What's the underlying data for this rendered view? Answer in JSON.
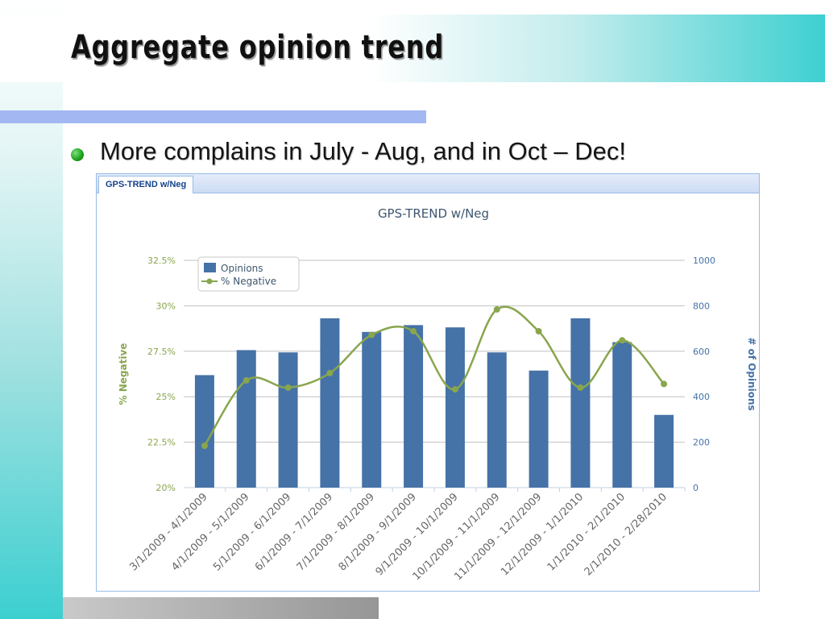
{
  "slide": {
    "title": "Aggregate opinion trend",
    "bullet": "More complains in July - Aug, and in Oct – Dec!"
  },
  "panel": {
    "tab_label": "GPS-TREND w/Neg"
  },
  "colors": {
    "bar": "#4572a7",
    "line": "#89a54e",
    "title": "#3e576f",
    "tick": "#666666"
  },
  "chart_data": {
    "type": "bar",
    "title": "GPS-TREND w/Neg",
    "categories": [
      "3/1/2009 - 4/1/2009",
      "4/1/2009 - 5/1/2009",
      "5/1/2009 - 6/1/2009",
      "6/1/2009 - 7/1/2009",
      "7/1/2009 - 8/1/2009",
      "8/1/2009 - 9/1/2009",
      "9/1/2009 - 10/1/2009",
      "10/1/2009 - 11/1/2009",
      "11/1/2009 - 12/1/2009",
      "12/1/2009 - 1/1/2010",
      "1/1/2010 - 2/1/2010",
      "2/1/2010 - 2/28/2010"
    ],
    "series": [
      {
        "name": "Opinions",
        "type": "bar",
        "axis": "right",
        "values": [
          495,
          605,
          595,
          745,
          685,
          715,
          705,
          595,
          515,
          745,
          640,
          320
        ]
      },
      {
        "name": "% Negative",
        "type": "line",
        "axis": "left",
        "values": [
          22.3,
          25.9,
          25.5,
          26.3,
          28.4,
          28.6,
          25.4,
          29.8,
          28.6,
          25.5,
          28.1,
          25.7
        ]
      }
    ],
    "y_left": {
      "label": "% Negative",
      "lim": [
        20,
        32.5
      ],
      "ticks": [
        "20%",
        "22.5%",
        "25%",
        "27.5%",
        "30%",
        "32.5%"
      ]
    },
    "y_right": {
      "label": "# of Opinions",
      "lim": [
        0,
        1000
      ],
      "ticks": [
        "0",
        "200",
        "400",
        "600",
        "800",
        "1000"
      ]
    },
    "grid": true,
    "legend_position": "top-left"
  }
}
